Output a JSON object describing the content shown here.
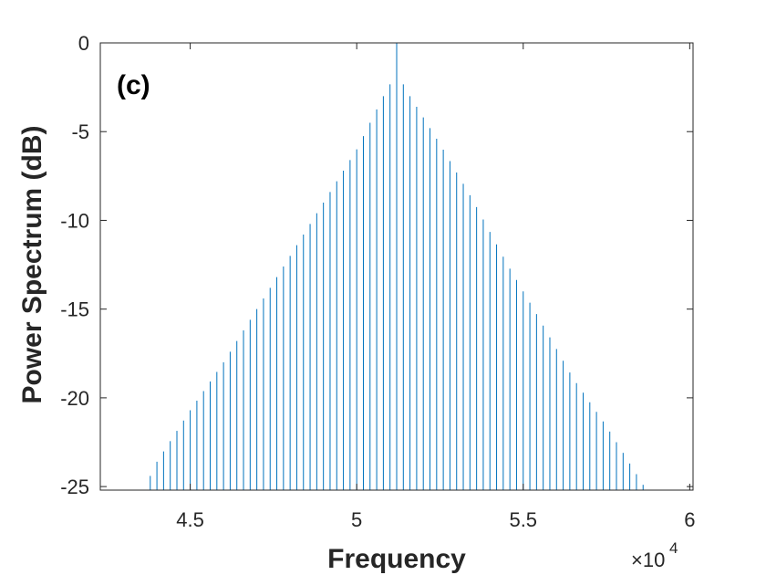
{
  "chart_data": {
    "type": "line",
    "panel_label": "(c)",
    "xlabel": "Frequency",
    "ylabel": "Power Spectrum (dB)",
    "x_multiplier_label": "×10",
    "x_multiplier_exponent": "4",
    "xlim": [
      42300,
      60100
    ],
    "ylim": [
      -25.2,
      0
    ],
    "x_ticks": [
      45000,
      50000,
      55000,
      60000
    ],
    "x_tick_labels": [
      "4.5",
      "5",
      "5.5",
      "6"
    ],
    "y_ticks": [
      0,
      -5,
      -10,
      -15,
      -20,
      -25
    ],
    "y_tick_labels": [
      "0",
      "-5",
      "-10",
      "-15",
      "-20",
      "-25"
    ],
    "grid": false,
    "series": [
      {
        "color": "#0072BD",
        "line_spacing": 200,
        "x_range": [
          43600,
          58700
        ],
        "peak": {
          "x": 51200,
          "y": 0
        },
        "envelope": [
          {
            "x": 43600,
            "y": -25.2
          },
          {
            "x": 44000,
            "y": -23.6
          },
          {
            "x": 45000,
            "y": -20.7
          },
          {
            "x": 46000,
            "y": -18.0
          },
          {
            "x": 47000,
            "y": -15.0
          },
          {
            "x": 48000,
            "y": -12.0
          },
          {
            "x": 49000,
            "y": -9.0
          },
          {
            "x": 50000,
            "y": -6.0
          },
          {
            "x": 50800,
            "y": -3.0
          },
          {
            "x": 51100,
            "y": -2.0
          },
          {
            "x": 51300,
            "y": -2.0
          },
          {
            "x": 51600,
            "y": -3.0
          },
          {
            "x": 52500,
            "y": -5.7
          },
          {
            "x": 53500,
            "y": -8.9
          },
          {
            "x": 54500,
            "y": -12.4
          },
          {
            "x": 55500,
            "y": -15.6
          },
          {
            "x": 56500,
            "y": -18.9
          },
          {
            "x": 57500,
            "y": -21.6
          },
          {
            "x": 58400,
            "y": -24.3
          },
          {
            "x": 58700,
            "y": -25.2
          }
        ]
      }
    ]
  }
}
